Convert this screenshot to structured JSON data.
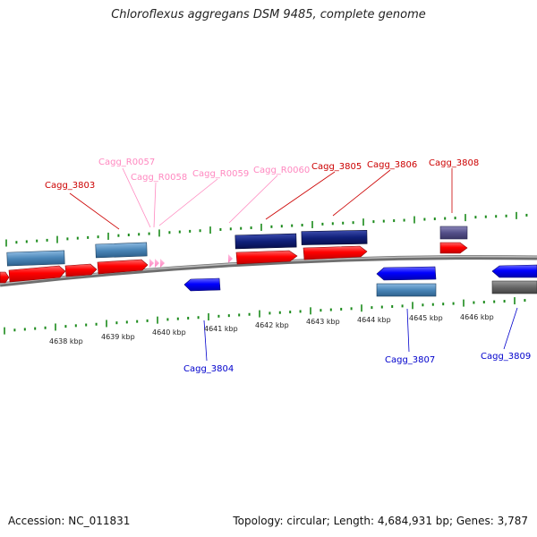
{
  "title": "Chloroflexus aggregans DSM 9485, complete genome",
  "footer": {
    "accession": "Accession: NC_011831",
    "topology": "Topology: circular; Length: 4,684,931 bp; Genes: 3,787"
  },
  "ruler_labels": [
    "4638 kbp",
    "4639 kbp",
    "4640 kbp",
    "4641 kbp",
    "4642 kbp",
    "4643 kbp",
    "4644 kbp",
    "4645 kbp",
    "4646 kbp"
  ],
  "gene_labels": [
    {
      "text": "Cagg_3803",
      "type": "cds_forward"
    },
    {
      "text": "Cagg_R0057",
      "type": "rna"
    },
    {
      "text": "Cagg_R0058",
      "type": "rna"
    },
    {
      "text": "Cagg_R0059",
      "type": "rna"
    },
    {
      "text": "Cagg_R0060",
      "type": "rna"
    },
    {
      "text": "Cagg_3805",
      "type": "cds_forward"
    },
    {
      "text": "Cagg_3806",
      "type": "cds_forward"
    },
    {
      "text": "Cagg_3808",
      "type": "cds_forward"
    },
    {
      "text": "Cagg_3804",
      "type": "cds_reverse"
    },
    {
      "text": "Cagg_3807",
      "type": "cds_reverse"
    },
    {
      "text": "Cagg_3809",
      "type": "cds_reverse"
    }
  ],
  "colors": {
    "cds_forward": "#ff0000",
    "cds_reverse": "#0000ff",
    "rna": "#ff99cc",
    "feature_steel": "#4a86b8",
    "feature_navy": "#10207a",
    "feature_purple": "#55508a",
    "feature_gray": "#666666",
    "tick": "#1a8a1a",
    "backbone": "#888888"
  }
}
